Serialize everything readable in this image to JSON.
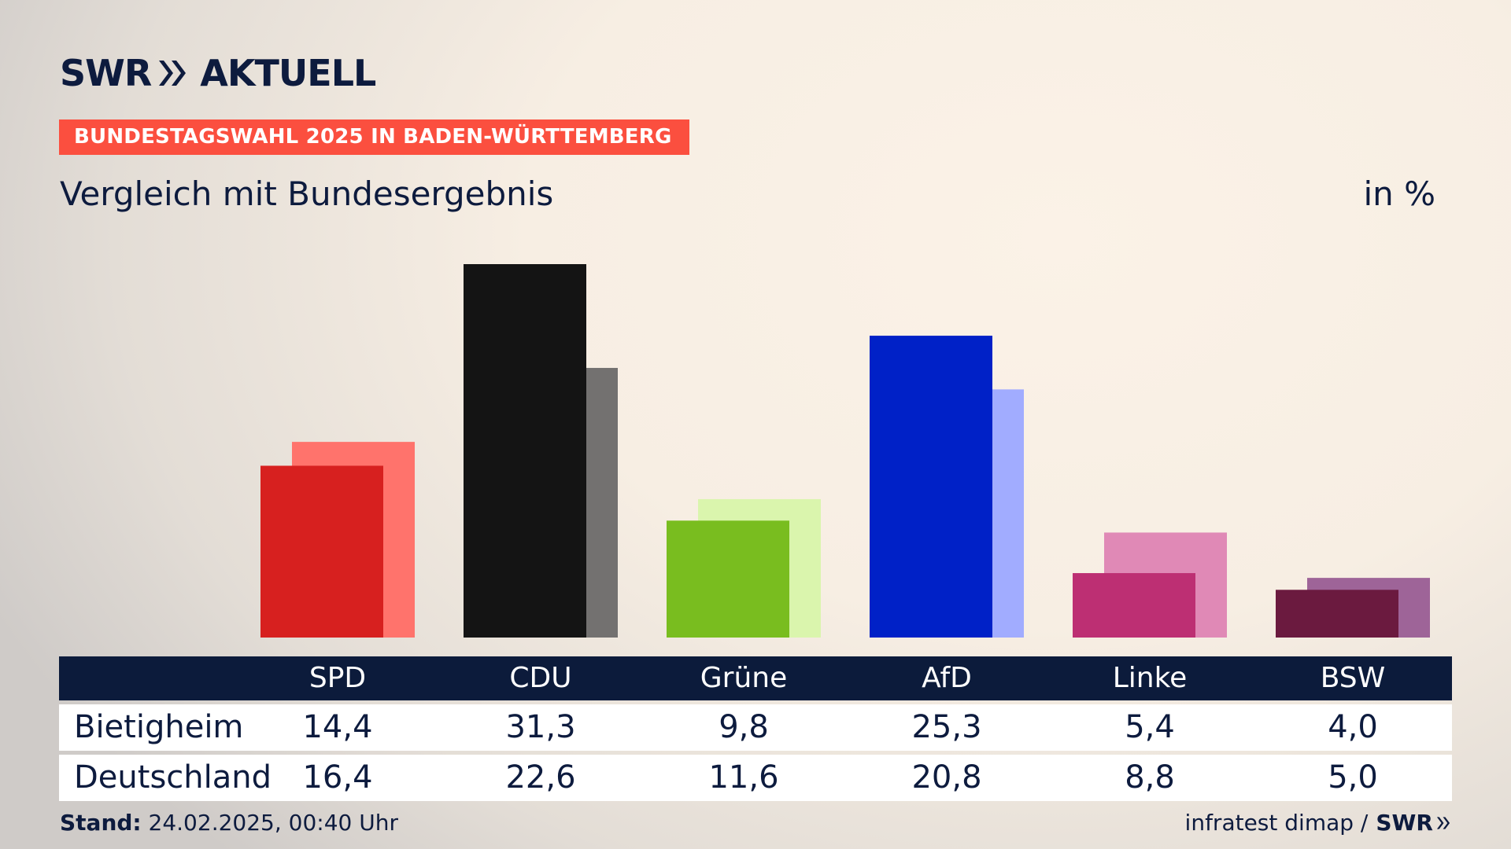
{
  "brand": {
    "logo_text_left": "SWR",
    "logo_text_right": "AKTUELL",
    "source_logo": "SWR"
  },
  "header": {
    "banner": "BUNDESTAGSWAHL 2025 IN BADEN-WÜRTTEMBERG",
    "subtitle": "Vergleich mit Bundesergebnis",
    "unit": "in %"
  },
  "footer": {
    "stand_label": "Stand:",
    "stand_value": "24.02.2025, 00:40 Uhr",
    "source": "infratest dimap /"
  },
  "colors": {
    "banner": "#fb4f3f",
    "navy": "#0c1b3b"
  },
  "icons": {
    "logo_arrows": "double-chevron-right-icon"
  },
  "chart_data": {
    "type": "bar",
    "categories": [
      "SPD",
      "CDU",
      "Grüne",
      "AfD",
      "Linke",
      "BSW"
    ],
    "series": [
      {
        "name": "Bietigheim",
        "values": [
          14.4,
          31.3,
          9.8,
          25.3,
          5.4,
          4.0
        ],
        "labels": [
          "14,4",
          "31,3",
          "9,8",
          "25,3",
          "5,4",
          "4,0"
        ],
        "colors": [
          "#d7201f",
          "#141414",
          "#79bd1f",
          "#0021c7",
          "#bd2f73",
          "#6b1a3f"
        ]
      },
      {
        "name": "Deutschland",
        "values": [
          16.4,
          22.6,
          11.6,
          20.8,
          8.8,
          5.0
        ],
        "labels": [
          "16,4",
          "22,6",
          "11,6",
          "20,8",
          "8,8",
          "5,0"
        ],
        "colors": [
          "#ff736c",
          "#737170",
          "#daf5ad",
          "#a1acff",
          "#e089b6",
          "#9e6498"
        ]
      }
    ],
    "ylim": [
      0,
      31.3
    ]
  }
}
